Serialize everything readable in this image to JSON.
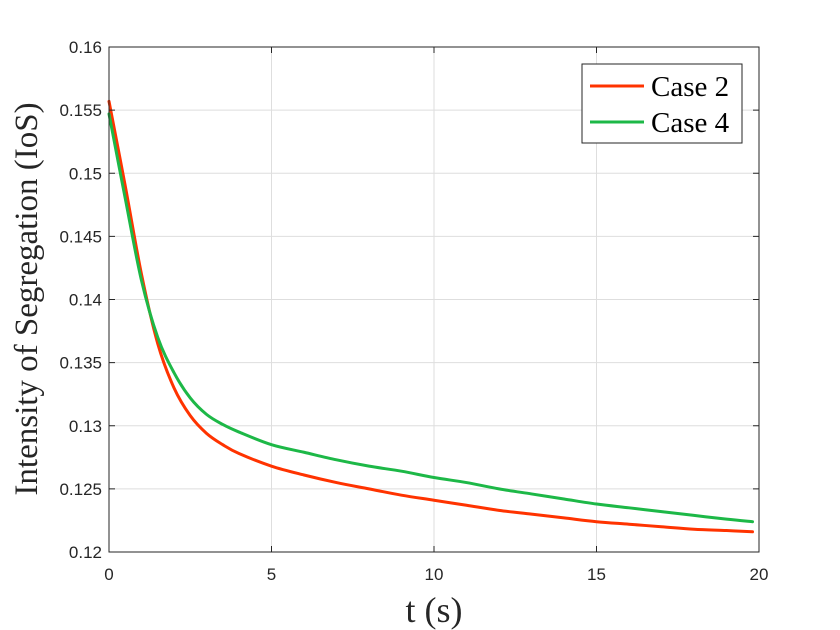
{
  "chart_data": {
    "type": "line",
    "title": "",
    "xlabel": "t (s)",
    "ylabel": "Intensity of Segregation (IoS)",
    "xlim": [
      0,
      20
    ],
    "ylim": [
      0.12,
      0.16
    ],
    "x_ticks": [
      0,
      5,
      10,
      15,
      20
    ],
    "x_tick_labels": [
      "0",
      "5",
      "10",
      "15",
      "20"
    ],
    "y_ticks": [
      0.12,
      0.125,
      0.13,
      0.135,
      0.14,
      0.145,
      0.15,
      0.155,
      0.16
    ],
    "y_tick_labels": [
      "0.12",
      "0.125",
      "0.13",
      "0.135",
      "0.14",
      "0.145",
      "0.15",
      "0.155",
      "0.16"
    ],
    "grid": true,
    "legend_position": "top-right",
    "series": [
      {
        "name": "Case 2",
        "color": "#ff3300",
        "x": [
          0,
          0.5,
          1.0,
          1.5,
          2.0,
          2.5,
          3.0,
          3.5,
          4.0,
          5.0,
          6.0,
          7.0,
          8.0,
          9.0,
          10.0,
          11.0,
          12.0,
          13.0,
          14.0,
          15.0,
          16.0,
          17.0,
          18.0,
          19.0,
          19.8
        ],
        "y": [
          0.1557,
          0.149,
          0.142,
          0.1365,
          0.133,
          0.1308,
          0.1294,
          0.1285,
          0.1278,
          0.1268,
          0.1261,
          0.1255,
          0.125,
          0.1245,
          0.1241,
          0.1237,
          0.1233,
          0.123,
          0.1227,
          0.1224,
          0.1222,
          0.122,
          0.1218,
          0.1217,
          0.1216
        ]
      },
      {
        "name": "Case 4",
        "color": "#1db847",
        "x": [
          0,
          0.5,
          1.0,
          1.5,
          2.0,
          2.5,
          3.0,
          3.5,
          4.0,
          5.0,
          6.0,
          7.0,
          8.0,
          9.0,
          10.0,
          11.0,
          12.0,
          13.0,
          14.0,
          15.0,
          16.0,
          17.0,
          18.0,
          19.0,
          19.8
        ],
        "y": [
          0.1547,
          0.148,
          0.1415,
          0.137,
          0.1342,
          0.1322,
          0.1309,
          0.1301,
          0.1295,
          0.1285,
          0.1279,
          0.1273,
          0.1268,
          0.1264,
          0.1259,
          0.1255,
          0.125,
          0.1246,
          0.1242,
          0.1238,
          0.1235,
          0.1232,
          0.1229,
          0.1226,
          0.1224
        ]
      }
    ]
  }
}
